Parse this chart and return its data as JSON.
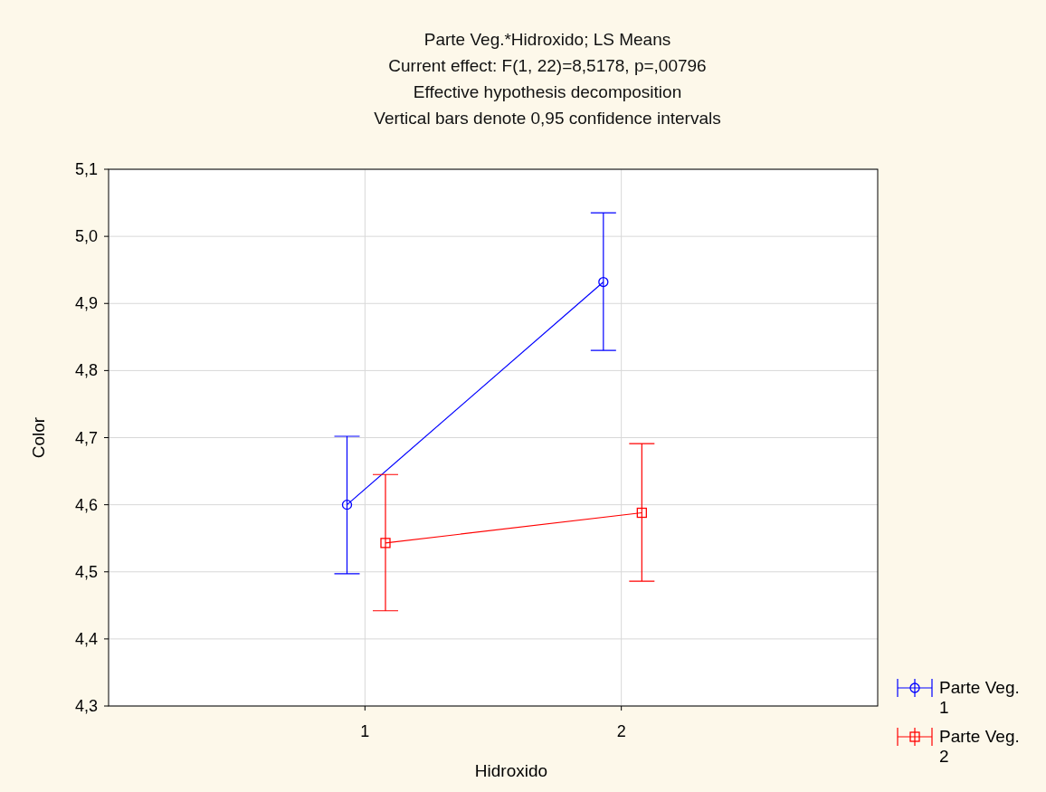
{
  "chart_data": {
    "type": "line",
    "title": "Parte Veg.*Hidroxido; LS Means",
    "subtitle": "Current effect: F(1, 22)=8,5178, p=,00796",
    "annotations": [
      "Effective hypothesis decomposition",
      "Vertical bars denote 0,95 confidence intervals"
    ],
    "xlabel": "Hidroxido",
    "ylabel": "Color",
    "xlim": [
      0,
      3
    ],
    "xticks": [
      1,
      2
    ],
    "ylim": [
      4.3,
      5.1
    ],
    "yticks": [
      {
        "value": 4.3,
        "label": "4,3"
      },
      {
        "value": 4.4,
        "label": "4,4"
      },
      {
        "value": 4.5,
        "label": "4,5"
      },
      {
        "value": 4.6,
        "label": "4,6"
      },
      {
        "value": 4.7,
        "label": "4,7"
      },
      {
        "value": 4.8,
        "label": "4,8"
      },
      {
        "value": 4.9,
        "label": "4,9"
      },
      {
        "value": 5.0,
        "label": "5,0"
      },
      {
        "value": 5.1,
        "label": "5,1"
      }
    ],
    "grid": true,
    "legend": "bottom right",
    "series": [
      {
        "name": "Parte Veg. 1",
        "color": "#0000ff",
        "marker": "circle",
        "x": [
          0.93,
          1.93
        ],
        "values": [
          4.6,
          4.932
        ],
        "errors": [
          [
            4.497,
            4.702
          ],
          [
            4.83,
            5.035
          ]
        ]
      },
      {
        "name": "Parte Veg. 2",
        "color": "#ff0000",
        "marker": "square",
        "x": [
          1.08,
          2.08
        ],
        "values": [
          4.543,
          4.588
        ],
        "errors": [
          [
            4.442,
            4.645
          ],
          [
            4.486,
            4.691
          ]
        ]
      }
    ]
  }
}
